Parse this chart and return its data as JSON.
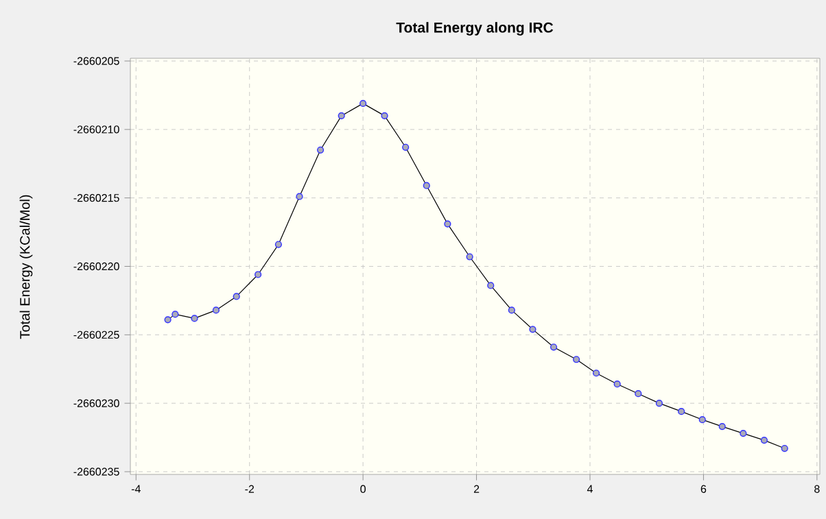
{
  "chart_data": {
    "type": "line",
    "title": "Total Energy along IRC",
    "ylabel": "Total Energy (KCal/Mol)",
    "xlim": [
      -4.1,
      8.05
    ],
    "xticks": [
      -4,
      -2,
      0,
      2,
      4,
      6,
      8
    ],
    "ylim": [
      -2660235.2,
      -2660204.8
    ],
    "yticks": [
      -2660235,
      -2660230,
      -2660225,
      -2660220,
      -2660215,
      -2660210,
      -2660205
    ],
    "grid": true,
    "marker": "circle",
    "line_style": "solid",
    "series": [
      {
        "color": "#3333ff",
        "x": [
          -3.44,
          -3.31,
          -2.97,
          -2.59,
          -2.23,
          -1.85,
          -1.49,
          -1.12,
          -0.75,
          -0.38,
          0.0,
          0.38,
          0.75,
          1.12,
          1.49,
          1.88,
          2.25,
          2.62,
          2.99,
          3.36,
          3.76,
          4.11,
          4.48,
          4.85,
          5.22,
          5.61,
          5.98,
          6.33,
          6.7,
          7.07,
          7.43
        ],
        "values": [
          -2660223.9,
          -2660223.5,
          -2660223.8,
          -2660223.2,
          -2660222.2,
          -2660220.6,
          -2660218.4,
          -2660214.9,
          -2660211.5,
          -2660209.0,
          -2660208.1,
          -2660209.0,
          -2660211.3,
          -2660214.1,
          -2660216.9,
          -2660219.3,
          -2660221.4,
          -2660223.2,
          -2660224.6,
          -2660225.9,
          -2660226.8,
          -2660227.8,
          -2660228.6,
          -2660229.3,
          -2660230.0,
          -2660230.6,
          -2660231.2,
          -2660231.7,
          -2660232.2,
          -2660232.7,
          -2660233.3
        ]
      }
    ]
  }
}
